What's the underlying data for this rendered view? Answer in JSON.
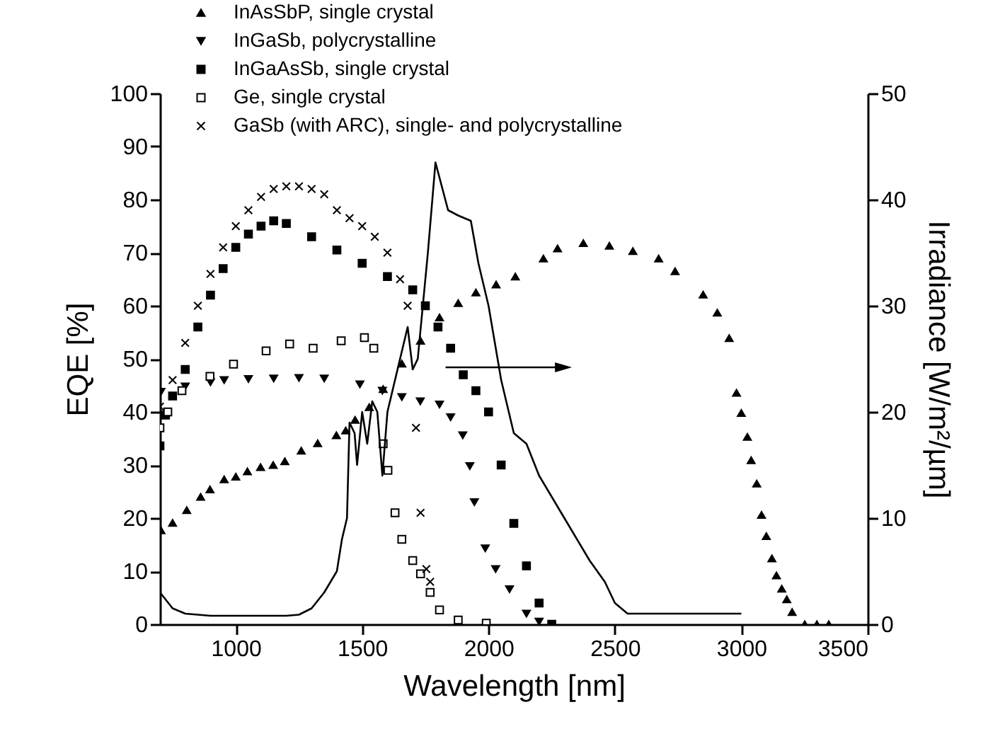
{
  "chart_data": {
    "type": "scatter",
    "xlabel": "Wavelength [nm]",
    "ylabel": "EQE [%]",
    "y2label": "Irradiance [W/m²/µm]",
    "xlim": [
      700,
      3500
    ],
    "xticks": [
      1000,
      1500,
      2000,
      2500,
      3000,
      3500
    ],
    "ylim": [
      0,
      100
    ],
    "yticks": [
      0,
      10,
      20,
      30,
      40,
      50,
      60,
      70,
      80,
      90,
      100
    ],
    "y2lim": [
      0,
      50
    ],
    "y2ticks": [
      0,
      10,
      20,
      30,
      40,
      50
    ],
    "legend": "top left",
    "series": [
      {
        "name": "InAsSbP, single crystal",
        "color": "#000000",
        "marker": "triangle",
        "x": [
          704,
          750,
          806,
          861,
          898,
          954,
          1000,
          1046,
          1098,
          1148,
          1194,
          1259,
          1324,
          1398,
          1435,
          1472,
          1528,
          1583,
          1657,
          1731,
          1806,
          1880,
          1950,
          2030,
          2106,
          2217,
          2273,
          2375,
          2478,
          2571,
          2673,
          2738,
          2849,
          2905,
          2952,
          2981,
          3000,
          3024,
          3039,
          3061,
          3080,
          3099,
          3121,
          3139,
          3160,
          3180,
          3201,
          3251,
          3299,
          3346
        ],
        "values": [
          17.7,
          19.1,
          21.5,
          24,
          25.4,
          27.3,
          27.8,
          28.8,
          29.6,
          30,
          30.7,
          32.7,
          34.1,
          35.6,
          36.5,
          38.5,
          40.9,
          44.3,
          49.1,
          53.4,
          57.8,
          60.5,
          62.5,
          64,
          65.5,
          68.9,
          70.8,
          71.8,
          71.3,
          70.3,
          68.9,
          66.5,
          62.1,
          58.7,
          53.9,
          43.6,
          39.8,
          35.3,
          30.9,
          26.5,
          20.6,
          16.6,
          12.4,
          9.2,
          6.7,
          4.7,
          2.3,
          0,
          0,
          0
        ]
      },
      {
        "name": "InGaSb, polycrystalline",
        "color": "#000000",
        "marker": "triangle-down",
        "x": [
          704,
          800,
          900,
          954,
          1050,
          1150,
          1250,
          1350,
          1491,
          1580,
          1657,
          1730,
          1806,
          1850,
          1898,
          1926,
          1944,
          1987,
          2028,
          2083,
          2150,
          2200
        ],
        "values": [
          43.8,
          44.8,
          45.6,
          46,
          46.2,
          46.3,
          46.4,
          46.3,
          45.2,
          44,
          42.8,
          42,
          41.4,
          39,
          35.6,
          29.8,
          23,
          14.3,
          10.4,
          6.6,
          2,
          0.5
        ]
      },
      {
        "name": "InGaAsSb, single crystal",
        "color": "#000000",
        "marker": "square",
        "x": [
          700,
          722,
          750,
          800,
          850,
          900,
          950,
          1000,
          1050,
          1100,
          1150,
          1200,
          1300,
          1400,
          1500,
          1600,
          1700,
          1750,
          1800,
          1850,
          1900,
          1950,
          2000,
          2050,
          2100,
          2150,
          2200,
          2250
        ],
        "values": [
          33.6,
          39.4,
          43,
          48,
          56,
          62,
          67,
          71,
          73.5,
          75,
          76,
          75.5,
          73,
          70.5,
          68,
          65.5,
          63,
          60,
          56,
          52,
          47,
          44,
          40,
          30,
          19,
          11,
          4,
          0
        ]
      },
      {
        "name": "Ge, single crystal",
        "color": "#000000",
        "marker": "square-open",
        "x": [
          700,
          731,
          787,
          898,
          991,
          1120,
          1213,
          1306,
          1417,
          1509,
          1546,
          1583,
          1602,
          1630,
          1657,
          1700,
          1731,
          1769,
          1806,
          1880,
          1991
        ],
        "values": [
          37,
          40,
          44,
          46.7,
          49,
          51.5,
          52.8,
          52,
          53.4,
          54,
          52,
          34,
          29,
          21,
          16,
          12,
          9.5,
          6,
          2.7,
          0.8,
          0.2
        ]
      },
      {
        "name": "GaSb (with ARC), single- and polycrystalline",
        "color": "#000000",
        "marker": "cross",
        "x": [
          700,
          750,
          800,
          850,
          900,
          950,
          1000,
          1050,
          1100,
          1150,
          1200,
          1250,
          1300,
          1350,
          1400,
          1450,
          1500,
          1550,
          1600,
          1650,
          1680,
          1713,
          1731,
          1754,
          1769
        ],
        "values": [
          41,
          46,
          53,
          60,
          66,
          71,
          75,
          78,
          80.5,
          82,
          82.5,
          82.5,
          82,
          81,
          78,
          76.5,
          75,
          73,
          70,
          65,
          60,
          37,
          21,
          10.4,
          8
        ]
      },
      {
        "type": "line",
        "axis": "y2",
        "color": "#000000",
        "marker": "none",
        "line_style": "solid",
        "x": [
          700,
          750,
          800,
          900,
          1000,
          1100,
          1200,
          1250,
          1300,
          1350,
          1400,
          1420,
          1440,
          1450,
          1470,
          1480,
          1500,
          1520,
          1540,
          1560,
          1580,
          1600,
          1650,
          1680,
          1700,
          1720,
          1760,
          1790,
          1840,
          1880,
          1930,
          1960,
          2000,
          2050,
          2100,
          2150,
          2200,
          2300,
          2400,
          2460,
          2500,
          2550,
          2600,
          2700,
          2800,
          3000
        ],
        "values": [
          3,
          1.5,
          1,
          0.8,
          0.8,
          0.8,
          0.8,
          0.9,
          1.5,
          3,
          5,
          8,
          10,
          19,
          18,
          15,
          20,
          17,
          21,
          20,
          14,
          20,
          25,
          28,
          24,
          25,
          35,
          43.5,
          39,
          38.5,
          38,
          34,
          30,
          23,
          18,
          17,
          14,
          10,
          6,
          4,
          2,
          1,
          1,
          1,
          1,
          1
        ]
      }
    ]
  }
}
